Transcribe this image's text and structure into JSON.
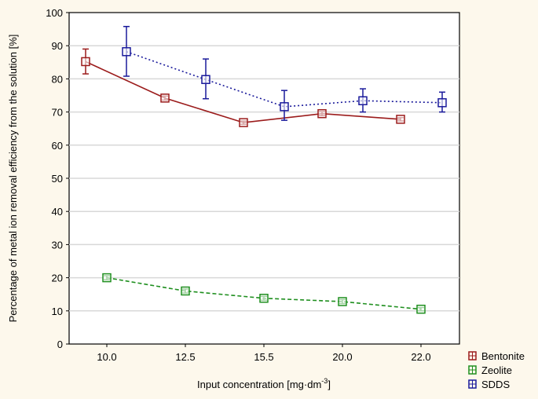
{
  "chart_data": {
    "type": "line",
    "title": "",
    "xlabel": "Input concentration [mg·dm",
    "xlabel_sup": "-3",
    "xlabel_end": "]",
    "ylabel": "Percentage of metal ion removal efficiency from the solution [%]",
    "ylim": [
      0,
      100
    ],
    "yticks": [
      0,
      10,
      20,
      30,
      40,
      50,
      60,
      70,
      80,
      90,
      100
    ],
    "categories": [
      "10.0",
      "12.5",
      "15.5",
      "20.0",
      "22.0"
    ],
    "grid": "horizontal",
    "legend_position": "bottom-right",
    "series": [
      {
        "name": "Bentonite",
        "color": "#9b1b1b",
        "style": "solid",
        "x": [
          -0.27,
          0.74,
          1.74,
          2.74,
          3.74
        ],
        "values": [
          85.2,
          74.2,
          66.8,
          69.5,
          67.8
        ],
        "err_low": [
          81.5,
          73.6,
          66.3,
          68.9,
          67.3
        ],
        "err_high": [
          89.0,
          74.8,
          67.3,
          70.1,
          68.3
        ]
      },
      {
        "name": "Zeolite",
        "color": "#1f8f1f",
        "style": "dashed",
        "x": [
          0,
          1,
          2,
          3,
          4
        ],
        "values": [
          20.0,
          16.0,
          13.8,
          12.8,
          10.5
        ],
        "err_low": [
          19.4,
          15.4,
          13.2,
          12.2,
          10.0
        ],
        "err_high": [
          20.6,
          16.6,
          14.4,
          13.4,
          11.0
        ]
      },
      {
        "name": "SDDS",
        "color": "#1a1a9b",
        "style": "dotted",
        "x": [
          0.25,
          1.26,
          2.26,
          3.26,
          4.27
        ],
        "values": [
          88.2,
          79.8,
          71.6,
          73.4,
          72.8
        ],
        "err_low": [
          80.8,
          74.0,
          67.5,
          70.0,
          70.0
        ],
        "err_high": [
          95.8,
          86.0,
          76.5,
          77.0,
          76.0
        ]
      }
    ]
  }
}
